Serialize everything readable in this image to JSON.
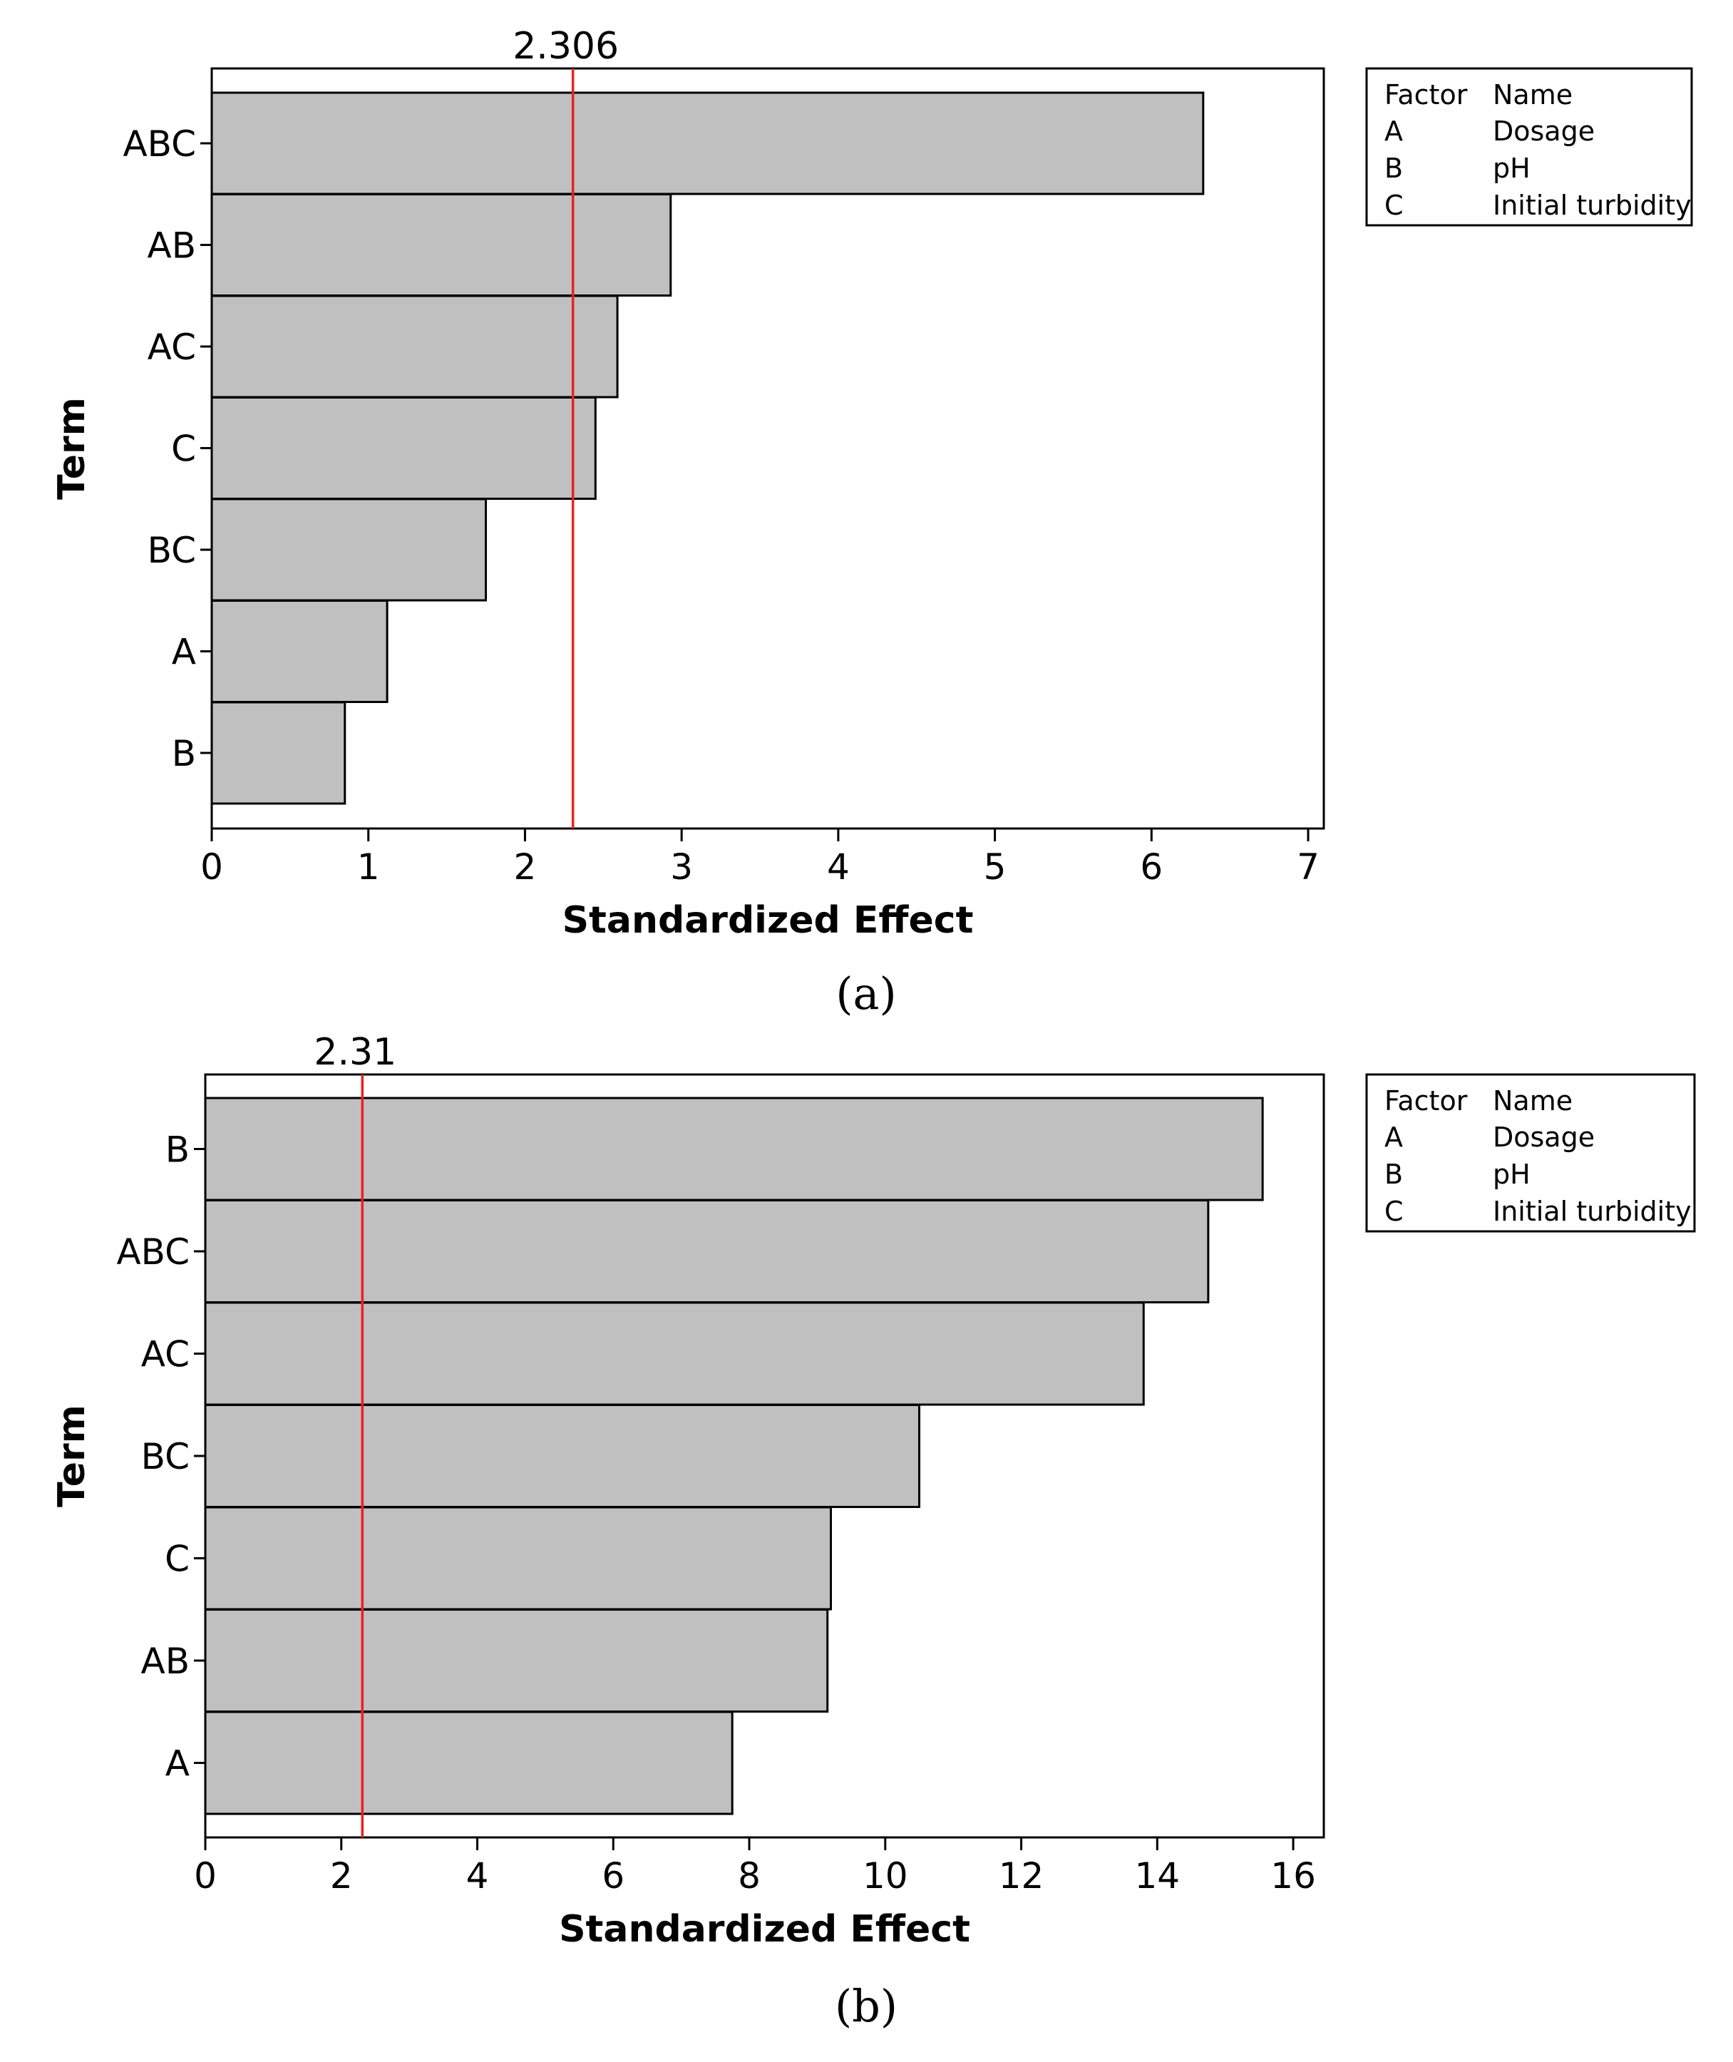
{
  "chart_data": [
    {
      "type": "bar",
      "orientation": "horizontal",
      "panel_label": "(a)",
      "categories": [
        "ABC",
        "AB",
        "AC",
        "C",
        "BC",
        "A",
        "B"
      ],
      "values": [
        6.33,
        2.93,
        2.59,
        2.45,
        1.75,
        1.12,
        0.85
      ],
      "xlabel": "Standardized Effect",
      "ylabel": "Term",
      "xlim": [
        0,
        7.1
      ],
      "xticks": [
        0,
        1,
        2,
        3,
        4,
        5,
        6,
        7
      ],
      "reference_line": {
        "value": 2.306,
        "label": "2.306"
      },
      "legend": {
        "header": [
          "Factor",
          "Name"
        ],
        "rows": [
          [
            "A",
            "Dosage"
          ],
          [
            "B",
            "pH"
          ],
          [
            "C",
            "Initial turbidity"
          ]
        ]
      }
    },
    {
      "type": "bar",
      "orientation": "horizontal",
      "panel_label": "(b)",
      "categories": [
        "B",
        "ABC",
        "AC",
        "BC",
        "C",
        "AB",
        "A"
      ],
      "values": [
        15.55,
        14.75,
        13.8,
        10.5,
        9.2,
        9.15,
        7.75
      ],
      "xlabel": "Standardized Effect",
      "ylabel": "Term",
      "xlim": [
        0,
        16.45
      ],
      "xticks": [
        0,
        2,
        4,
        6,
        8,
        10,
        12,
        14,
        16
      ],
      "reference_line": {
        "value": 2.31,
        "label": "2.31"
      },
      "legend": {
        "header": [
          "Factor",
          "Name"
        ],
        "rows": [
          [
            "A",
            "Dosage"
          ],
          [
            "B",
            "pH"
          ],
          [
            "C",
            "Initial turbidity"
          ]
        ]
      }
    }
  ]
}
